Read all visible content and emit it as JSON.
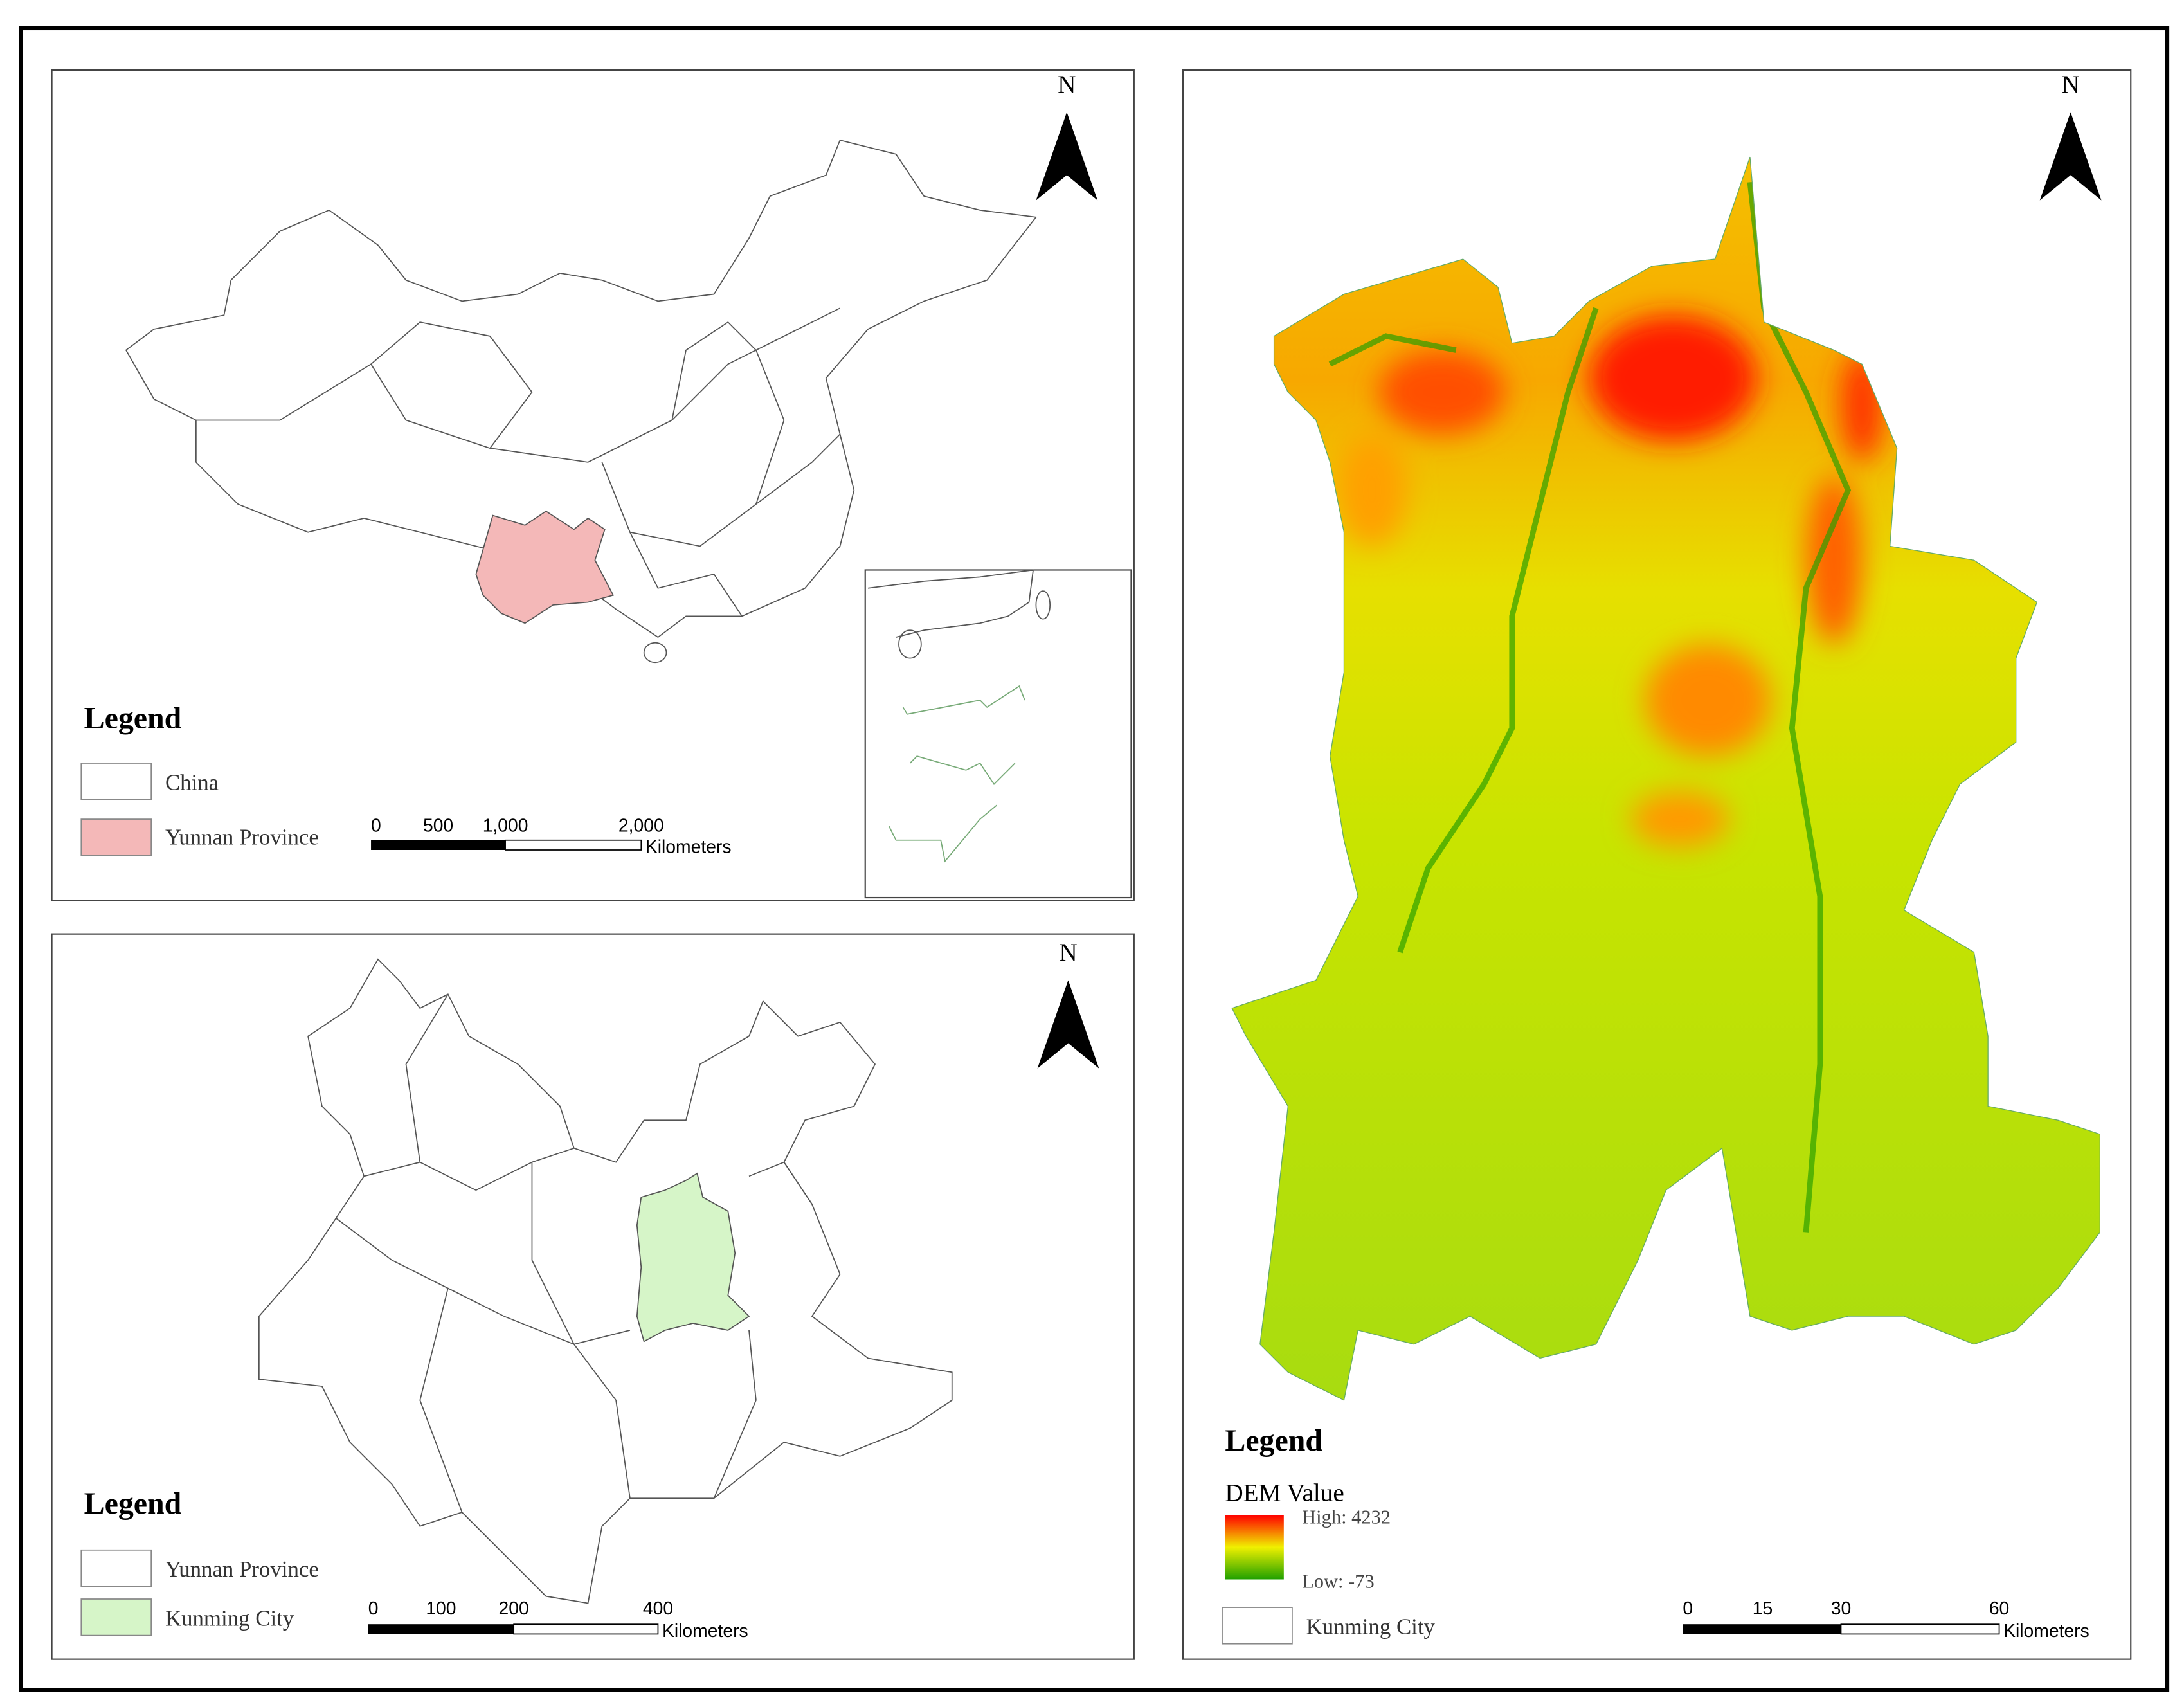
{
  "panels": [
    {
      "north": "N",
      "legend": {
        "title": "Legend",
        "items": [
          "China",
          "Yunnan Province"
        ]
      },
      "scale_bar": {
        "ticks": [
          "0",
          "500",
          "1,000",
          "2,000"
        ],
        "unit": "Kilometers"
      }
    },
    {
      "north": "N",
      "legend": {
        "title": "Legend",
        "items": [
          "Yunnan Province",
          "Kunming City"
        ]
      },
      "scale_bar": {
        "ticks": [
          "0",
          "100",
          "200",
          "400"
        ],
        "unit": "Kilometers"
      }
    },
    {
      "north": "N",
      "legend": {
        "title": "Legend",
        "subtitle": "DEM Value",
        "high": "High: 4232",
        "low": "Low: -73",
        "items": [
          "Kunming City"
        ]
      },
      "scale_bar": {
        "ticks": [
          "0",
          "15",
          "30",
          "60"
        ],
        "unit": "Kilometers"
      }
    }
  ]
}
